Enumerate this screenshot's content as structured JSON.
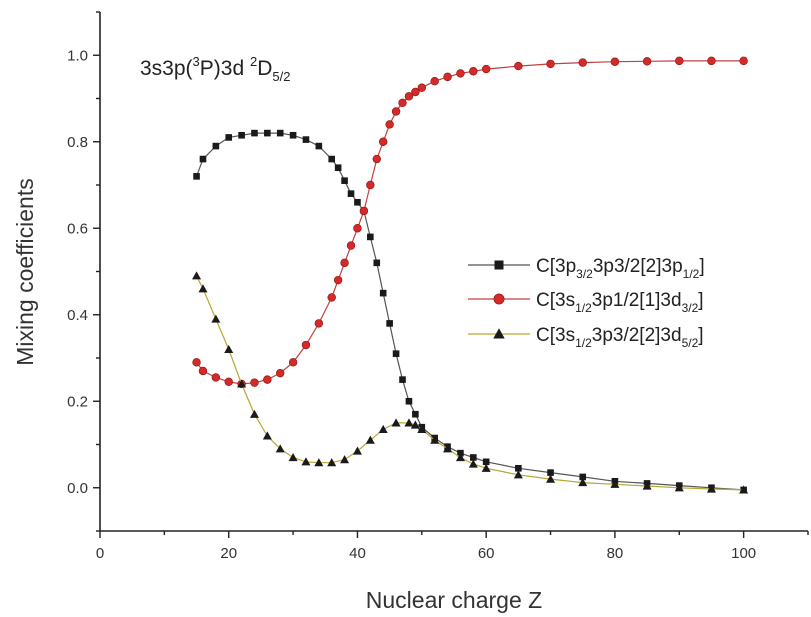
{
  "chart_data": {
    "type": "scatter",
    "xlabel": "Nuclear charge Z",
    "ylabel": "Mixing coefficients",
    "xlim": [
      0,
      110
    ],
    "ylim": [
      -0.1,
      1.1
    ],
    "x_ticks": [
      "0",
      "20",
      "40",
      "60",
      "80",
      "100"
    ],
    "x_tick_values": [
      0,
      20,
      40,
      60,
      80,
      100
    ],
    "y_ticks": [
      "0.0",
      "0.2",
      "0.4",
      "0.6",
      "0.8",
      "1.0"
    ],
    "y_tick_values": [
      0.0,
      0.2,
      0.4,
      0.6,
      0.8,
      1.0
    ],
    "grid": false,
    "legend_position": "right",
    "annotation": {
      "main": "3s3p(",
      "sup1": "3",
      "mid": "P)3d ",
      "sup2": "2",
      "end": "D",
      "sub": "5/2"
    },
    "series": [
      {
        "legend": {
          "p1": "C[3p",
          "s1": "3/2",
          "p2": "3p3/2[2]3p",
          "s2": "1/2",
          "p3": "]"
        },
        "marker": "square",
        "color": "#1a1a1a",
        "line_color": "#555555",
        "x": [
          15,
          16,
          18,
          20,
          22,
          24,
          26,
          28,
          30,
          32,
          34,
          36,
          37,
          38,
          39,
          40,
          41,
          42,
          43,
          44,
          45,
          46,
          47,
          48,
          49,
          50,
          52,
          54,
          56,
          58,
          60,
          65,
          70,
          75,
          80,
          85,
          90,
          95,
          100
        ],
        "y": [
          0.72,
          0.76,
          0.79,
          0.81,
          0.815,
          0.82,
          0.82,
          0.82,
          0.815,
          0.805,
          0.79,
          0.76,
          0.74,
          0.71,
          0.68,
          0.66,
          0.64,
          0.58,
          0.52,
          0.45,
          0.38,
          0.31,
          0.25,
          0.2,
          0.17,
          0.14,
          0.115,
          0.095,
          0.08,
          0.07,
          0.06,
          0.045,
          0.035,
          0.025,
          0.015,
          0.01,
          0.005,
          0.0,
          -0.005
        ]
      },
      {
        "legend": {
          "p1": "C[3s",
          "s1": "1/2",
          "p2": "3p1/2[1]3d",
          "s2": "3/2",
          "p3": "]"
        },
        "marker": "circle",
        "color": "#d42a2a",
        "line_color": "#c04040",
        "x": [
          15,
          16,
          18,
          20,
          22,
          24,
          26,
          28,
          30,
          32,
          34,
          36,
          37,
          38,
          39,
          40,
          41,
          42,
          43,
          44,
          45,
          46,
          47,
          48,
          49,
          50,
          52,
          54,
          56,
          58,
          60,
          65,
          70,
          75,
          80,
          85,
          90,
          95,
          100
        ],
        "y": [
          0.29,
          0.27,
          0.255,
          0.245,
          0.24,
          0.243,
          0.25,
          0.265,
          0.29,
          0.33,
          0.38,
          0.44,
          0.48,
          0.52,
          0.56,
          0.6,
          0.64,
          0.7,
          0.76,
          0.8,
          0.84,
          0.87,
          0.89,
          0.905,
          0.915,
          0.925,
          0.94,
          0.95,
          0.958,
          0.963,
          0.968,
          0.975,
          0.98,
          0.983,
          0.985,
          0.986,
          0.987,
          0.987,
          0.987
        ]
      },
      {
        "legend": {
          "p1": "C[3s",
          "s1": "1/2",
          "p2": "3p3/2[2]3d",
          "s2": "5/2",
          "p3": "]"
        },
        "marker": "triangle",
        "color": "#1a1a1a",
        "line_color": "#b8a830",
        "x": [
          15,
          16,
          18,
          20,
          22,
          24,
          26,
          28,
          30,
          32,
          34,
          36,
          38,
          40,
          42,
          44,
          46,
          48,
          49,
          50,
          52,
          54,
          56,
          58,
          60,
          65,
          70,
          75,
          80,
          85,
          90,
          95,
          100
        ],
        "y": [
          0.49,
          0.46,
          0.39,
          0.32,
          0.24,
          0.17,
          0.12,
          0.09,
          0.07,
          0.06,
          0.058,
          0.058,
          0.065,
          0.085,
          0.11,
          0.135,
          0.15,
          0.15,
          0.145,
          0.135,
          0.11,
          0.09,
          0.07,
          0.055,
          0.045,
          0.03,
          0.02,
          0.012,
          0.008,
          0.004,
          0.0,
          -0.003,
          -0.005
        ]
      }
    ]
  }
}
